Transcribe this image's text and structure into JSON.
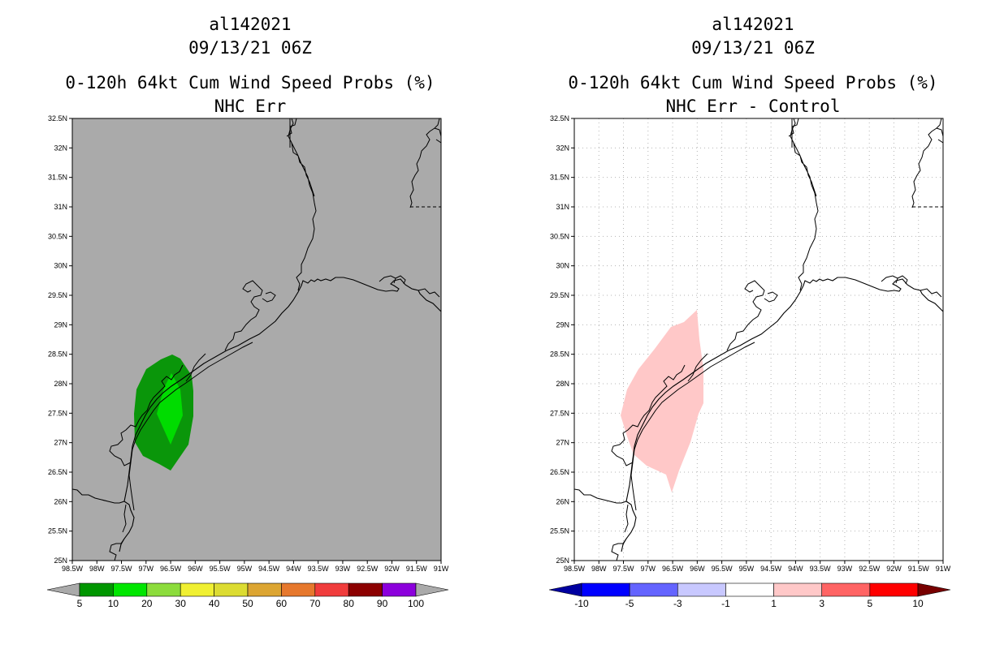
{
  "left_panel": {
    "title_storm": "al142021",
    "title_date": "09/13/21 06Z",
    "title_product": "0-120h 64kt Cum Wind Speed Probs (%)",
    "title_subtitle": "NHC Err",
    "background_color": "#aaaaaa",
    "colorbar": {
      "colors": [
        "#009600",
        "#00e600",
        "#8cdc3c",
        "#f0f032",
        "#dcdc32",
        "#dca532",
        "#e6782d",
        "#f03c3c",
        "#8c0000",
        "#8c00dc"
      ],
      "end_colors": [
        "#aaaaaa",
        "#aaaaaa"
      ],
      "labels": [
        "5",
        "10",
        "20",
        "30",
        "40",
        "50",
        "60",
        "70",
        "80",
        "90",
        "100"
      ]
    },
    "shading": [
      {
        "level": "5-10",
        "color": "#0a960a"
      },
      {
        "level": "10-20",
        "color": "#00dc00"
      }
    ]
  },
  "right_panel": {
    "title_storm": "al142021",
    "title_date": "09/13/21 06Z",
    "title_product": "0-120h 64kt Cum Wind Speed Probs (%)",
    "title_subtitle": "NHC Err - Control",
    "background_color": "#ffffff",
    "colorbar": {
      "colors": [
        "#0000ff",
        "#6464ff",
        "#c8c8ff",
        "#ffffff",
        "#ffc8c8",
        "#ff6464",
        "#ff0000"
      ],
      "end_colors": [
        "#0000a0",
        "#780000"
      ],
      "labels": [
        "-10",
        "-5",
        "-3",
        "-1",
        "1",
        "3",
        "5",
        "10"
      ]
    },
    "shading": [
      {
        "level": "1-3",
        "color": "#ffc8c8"
      }
    ]
  },
  "map": {
    "lat_labels": [
      "32.5N",
      "32N",
      "31.5N",
      "31N",
      "30.5N",
      "30N",
      "29.5N",
      "29N",
      "28.5N",
      "28N",
      "27.5N",
      "27N",
      "26.5N",
      "26N",
      "25.5N",
      "25N"
    ],
    "lon_labels": [
      "98.5W",
      "98W",
      "97.5W",
      "97W",
      "96.5W",
      "96W",
      "95.5W",
      "95W",
      "94.5W",
      "94W",
      "93.5W",
      "93W",
      "92.5W",
      "92W",
      "91.5W",
      "91W"
    ]
  }
}
